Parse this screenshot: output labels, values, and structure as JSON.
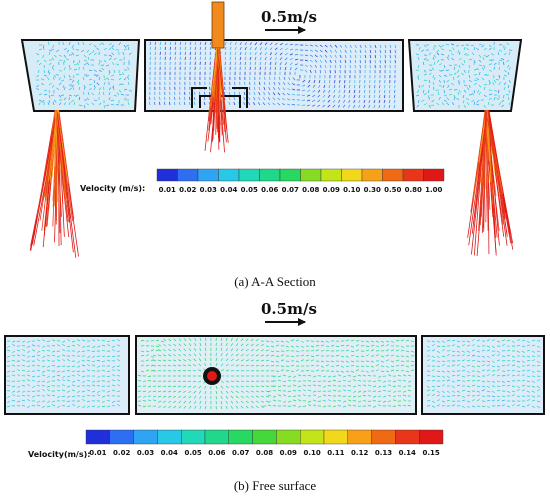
{
  "panel_a": {
    "scale_label": "0.5m/s",
    "colorbar_title": "Velocity (m/s):",
    "colorbar_ticks": [
      "0.01",
      "0.02",
      "0.03",
      "0.04",
      "0.05",
      "0.06",
      "0.07",
      "0.08",
      "0.09",
      "0.10",
      "0.30",
      "0.50",
      "0.80",
      "1.00"
    ],
    "caption_letter": "(a)",
    "caption_text": " A-A Section"
  },
  "panel_b": {
    "scale_label": "0.5m/s",
    "colorbar_title": "Velocity(m/s):",
    "colorbar_ticks": [
      "0.01",
      "0.02",
      "0.03",
      "0.04",
      "0.05",
      "0.06",
      "0.07",
      "0.08",
      "0.09",
      "0.10",
      "0.11",
      "0.12",
      "0.13",
      "0.14",
      "0.15"
    ],
    "caption_letter": "(b)",
    "caption_text": " Free surface"
  },
  "colors": {
    "colormap": [
      "#1f2fd9",
      "#2e6ef0",
      "#2fa4f2",
      "#27c9e6",
      "#21d8b8",
      "#1fd88a",
      "#27d861",
      "#45d83a",
      "#86dc22",
      "#c4e41a",
      "#f2d81a",
      "#f7a018",
      "#f06a14",
      "#e8361a",
      "#e01818"
    ],
    "outline": "#111111",
    "inlet_orange": "#f08a1c",
    "plug_red": "#e01818"
  }
}
